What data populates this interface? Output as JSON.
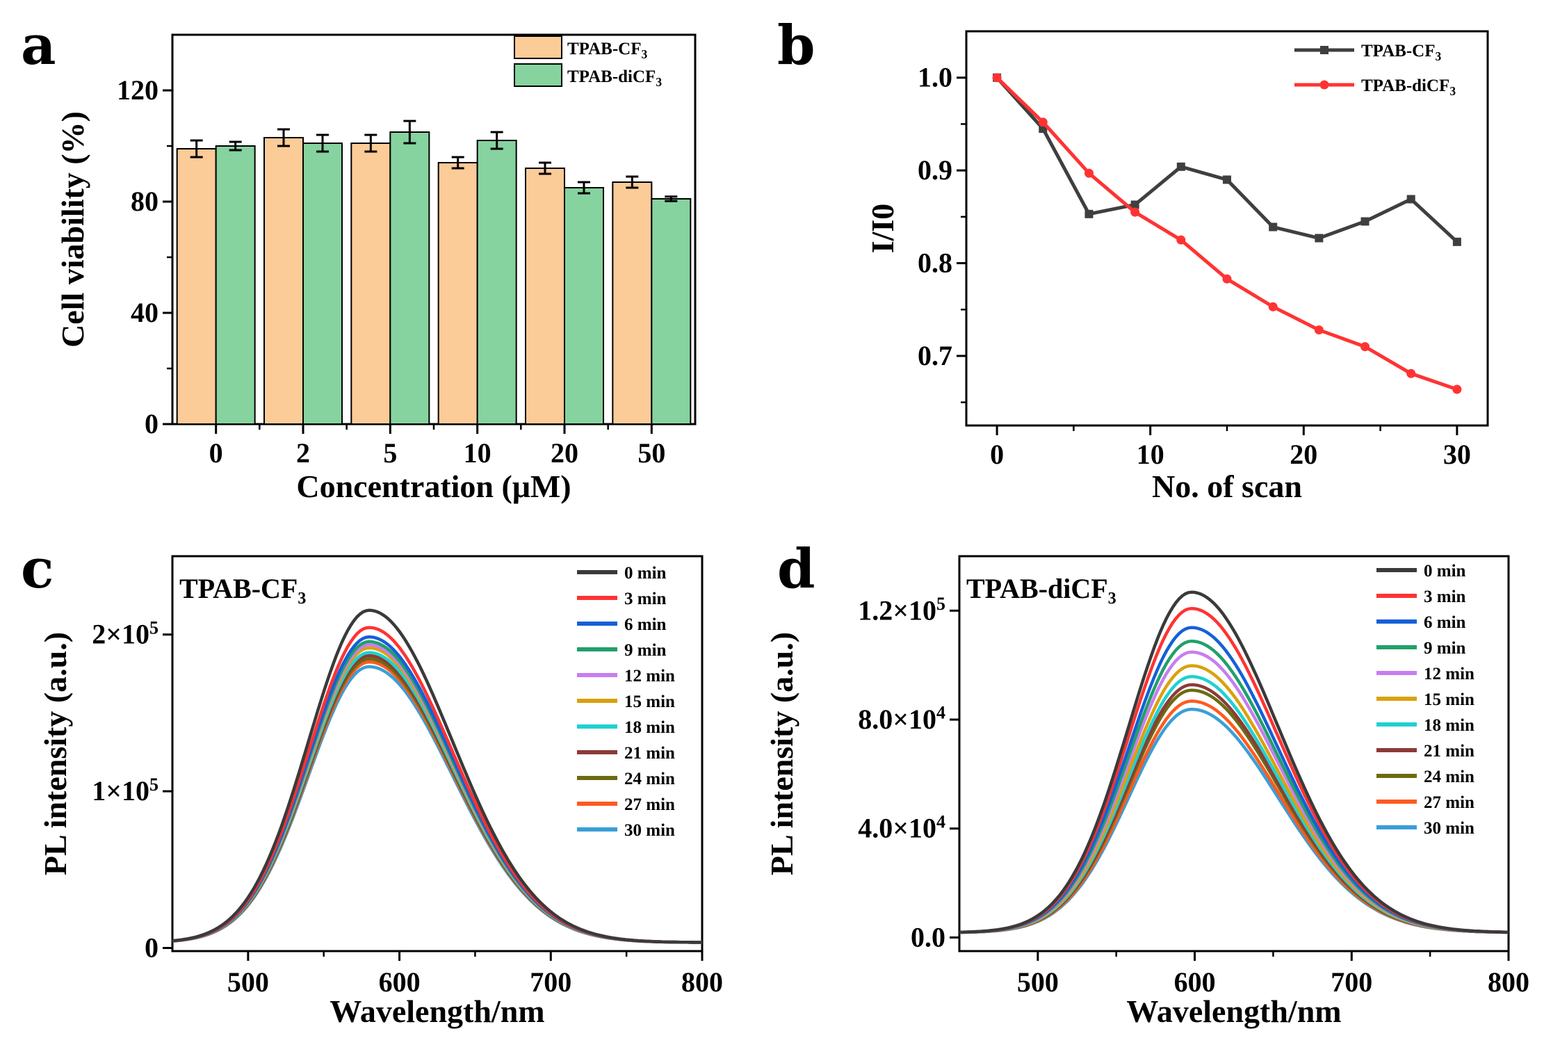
{
  "chart_data": [
    {
      "panel": "a",
      "type": "bar",
      "xlabel": "Concentration (μM)",
      "ylabel": "Cell viability (%)",
      "ylim": [
        0,
        140
      ],
      "yticks": [
        "0",
        "40",
        "80",
        "120"
      ],
      "categories": [
        "0",
        "2",
        "5",
        "10",
        "20",
        "50"
      ],
      "series": [
        {
          "name": "TPAB-CF3",
          "legend_main": "TPAB-CF",
          "legend_sub": "3",
          "color": "#FBCB98",
          "values": [
            99,
            103,
            101,
            94,
            92,
            87
          ],
          "errors": [
            3,
            3,
            3,
            2,
            2,
            2
          ]
        },
        {
          "name": "TPAB-diCF3",
          "legend_main": "TPAB-diCF",
          "legend_sub": "3",
          "color": "#86D39F",
          "values": [
            100,
            101,
            105,
            102,
            85,
            81
          ],
          "errors": [
            1.5,
            3,
            4,
            3,
            2,
            0.8
          ]
        }
      ],
      "legend_position": "top-right"
    },
    {
      "panel": "b",
      "type": "line",
      "xlabel": "No. of scan",
      "ylabel": "I/I0",
      "xlim": [
        -2,
        32
      ],
      "ylim": [
        0.625,
        1.05
      ],
      "xticks": [
        "0",
        "10",
        "20",
        "30"
      ],
      "yticks": [
        "0.7",
        "0.8",
        "0.9",
        "1.0"
      ],
      "x": [
        0,
        3,
        6,
        9,
        12,
        15,
        18,
        21,
        24,
        27,
        30
      ],
      "series": [
        {
          "name": "TPAB-CF3",
          "legend_main": "TPAB-CF",
          "legend_sub": "3",
          "color": "#3f3f3f",
          "marker": "square",
          "values": [
            1.0,
            0.945,
            0.853,
            0.863,
            0.904,
            0.89,
            0.839,
            0.827,
            0.845,
            0.869,
            0.823
          ]
        },
        {
          "name": "TPAB-diCF3",
          "legend_main": "TPAB-diCF",
          "legend_sub": "3",
          "color": "#ff3333",
          "marker": "circle",
          "values": [
            1.0,
            0.952,
            0.897,
            0.855,
            0.825,
            0.783,
            0.753,
            0.728,
            0.71,
            0.681,
            0.664
          ]
        }
      ],
      "legend_position": "top-right"
    },
    {
      "panel": "c",
      "type": "line",
      "title": "TPAB-CF₃",
      "xlabel": "Wavelength/nm",
      "ylabel": "PL intensity (a.u.)",
      "xlim": [
        450,
        800
      ],
      "ylim": [
        -2000,
        250000
      ],
      "xticks": [
        "500",
        "600",
        "700",
        "800"
      ],
      "yticks": [
        {
          "value": 0,
          "label": "0",
          "sup": ""
        },
        {
          "value": 100000,
          "label": "1×10",
          "sup": "5"
        },
        {
          "value": 200000,
          "label": "2×10",
          "sup": "5"
        }
      ],
      "peak_wavelength_nm": 580,
      "series": [
        {
          "name": "0 min",
          "color": "#3a3a3a",
          "peak": 212000
        },
        {
          "name": "3 min",
          "color": "#ff3333",
          "peak": 201000
        },
        {
          "name": "6 min",
          "color": "#1560d8",
          "peak": 195000
        },
        {
          "name": "9 min",
          "color": "#21a06a",
          "peak": 192000
        },
        {
          "name": "12 min",
          "color": "#c77ef0",
          "peak": 190000
        },
        {
          "name": "15 min",
          "color": "#daa10c",
          "peak": 188000
        },
        {
          "name": "18 min",
          "color": "#1fd1d1",
          "peak": 185000
        },
        {
          "name": "21 min",
          "color": "#8c3b38",
          "peak": 183000
        },
        {
          "name": "24 min",
          "color": "#6b6b10",
          "peak": 181000
        },
        {
          "name": "27 min",
          "color": "#ff5a1f",
          "peak": 179000
        },
        {
          "name": "30 min",
          "color": "#3a9fd6",
          "peak": 176000
        }
      ],
      "legend_position": "top-right"
    },
    {
      "panel": "d",
      "type": "line",
      "title": "TPAB-diCF₃",
      "xlabel": "Wavelength/nm",
      "ylabel": "PL intensity (a.u.)",
      "xlim": [
        450,
        800
      ],
      "ylim": [
        -5000,
        140000
      ],
      "xticks": [
        "500",
        "600",
        "700",
        "800"
      ],
      "yticks": [
        {
          "value": 0,
          "label": "0.0",
          "sup": ""
        },
        {
          "value": 40000,
          "label": "4.0×10",
          "sup": "4"
        },
        {
          "value": 80000,
          "label": "8.0×10",
          "sup": "4"
        },
        {
          "value": 120000,
          "label": "1.2×10",
          "sup": "5"
        }
      ],
      "peak_wavelength_nm": 598,
      "series": [
        {
          "name": "0 min",
          "color": "#3a3a3a",
          "peak": 125000
        },
        {
          "name": "3 min",
          "color": "#ff3333",
          "peak": 119000
        },
        {
          "name": "6 min",
          "color": "#1560d8",
          "peak": 112000
        },
        {
          "name": "9 min",
          "color": "#21a06a",
          "peak": 107000
        },
        {
          "name": "12 min",
          "color": "#c77ef0",
          "peak": 103000
        },
        {
          "name": "15 min",
          "color": "#daa10c",
          "peak": 98000
        },
        {
          "name": "18 min",
          "color": "#1fd1d1",
          "peak": 94000
        },
        {
          "name": "21 min",
          "color": "#8c3b38",
          "peak": 91000
        },
        {
          "name": "24 min",
          "color": "#6b6b10",
          "peak": 89000
        },
        {
          "name": "27 min",
          "color": "#ff5a1f",
          "peak": 85000
        },
        {
          "name": "30 min",
          "color": "#3a9fd6",
          "peak": 82000
        }
      ],
      "legend_position": "top-right"
    }
  ]
}
